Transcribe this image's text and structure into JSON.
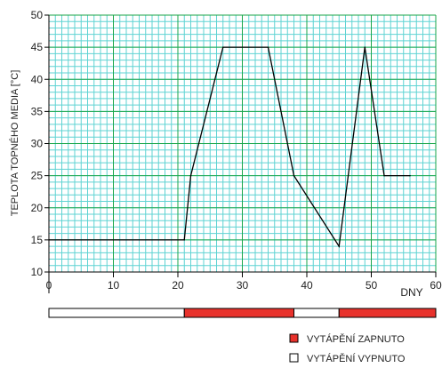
{
  "chart_data": {
    "type": "line",
    "title": "",
    "xlabel": "DNY",
    "ylabel": "TEPLOTA TOPNÉHO MEDIA  [°C]",
    "xlim": [
      0,
      60
    ],
    "ylim": [
      10,
      50
    ],
    "x_ticks": [
      0,
      10,
      20,
      30,
      40,
      50,
      60
    ],
    "y_ticks": [
      10,
      15,
      20,
      25,
      30,
      35,
      40,
      45,
      50
    ],
    "x_minor_step": 1,
    "y_minor_step": 1,
    "grid": true,
    "colors": {
      "minor_grid": "#5fd3d3",
      "major_grid": "#1aa64a",
      "line": "#000000",
      "heating_on": "#e8322c",
      "heating_off": "#ffffff"
    },
    "series": [
      {
        "x": [
          0,
          21,
          22,
          27,
          34,
          38,
          45,
          49,
          52,
          56
        ],
        "y": [
          15,
          15,
          25,
          45,
          45,
          25,
          14,
          45,
          25,
          25
        ]
      }
    ],
    "heating_bar": [
      {
        "from": 0,
        "to": 21,
        "state": "off"
      },
      {
        "from": 21,
        "to": 38,
        "state": "on"
      },
      {
        "from": 38,
        "to": 45,
        "state": "off"
      },
      {
        "from": 45,
        "to": 60,
        "state": "on"
      }
    ],
    "legend": [
      {
        "state": "on",
        "label": "VYTÁPĚNÍ ZAPNUTO"
      },
      {
        "state": "off",
        "label": "VYTÁPĚNÍ VYPNUTO"
      }
    ]
  }
}
